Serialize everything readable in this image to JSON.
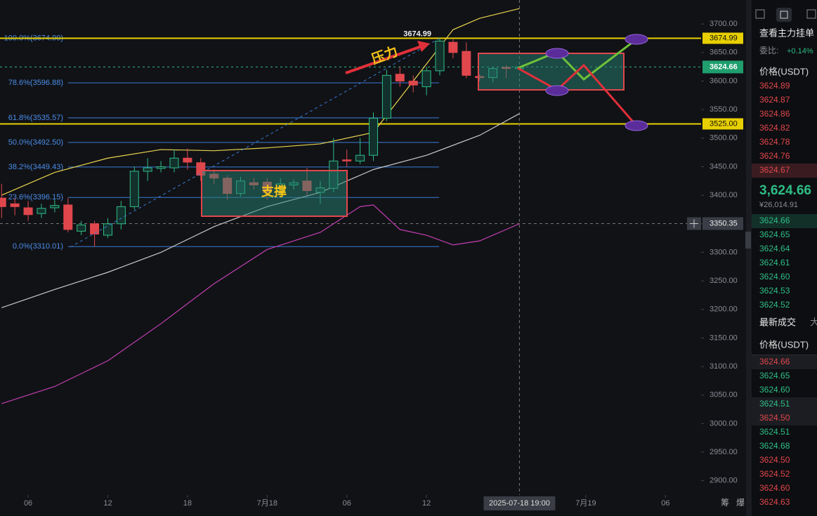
{
  "chart_data": {
    "type": "candlestick",
    "x": [
      4,
      5,
      6,
      7,
      8,
      9,
      10,
      11,
      12,
      13,
      14,
      15,
      16,
      17,
      18,
      19,
      20,
      21,
      22,
      23,
      24,
      25,
      26,
      27,
      28,
      29,
      30,
      31,
      32,
      33,
      34,
      35,
      36,
      37,
      38,
      39,
      40,
      41,
      42,
      43
    ],
    "open": [
      3395,
      3385,
      3378,
      3368,
      3378,
      3383,
      3337,
      3350,
      3330,
      3350,
      3380,
      3442,
      3447,
      3448,
      3465,
      3457,
      3437,
      3430,
      3403,
      3422,
      3423,
      3405,
      3418,
      3425,
      3405,
      3412,
      3462,
      3460,
      3470,
      3535,
      3612,
      3600,
      3590,
      3618,
      3668,
      3652,
      3608,
      3606,
      3624,
      3622
    ],
    "high": [
      3420,
      3395,
      3390,
      3385,
      3392,
      3395,
      3355,
      3355,
      3360,
      3390,
      3450,
      3465,
      3460,
      3480,
      3482,
      3465,
      3445,
      3435,
      3432,
      3430,
      3430,
      3430,
      3428,
      3448,
      3425,
      3500,
      3480,
      3500,
      3545,
      3620,
      3625,
      3610,
      3625,
      3674.99,
      3673,
      3668,
      3612,
      3625,
      3628,
      3626
    ],
    "low": [
      3360,
      3365,
      3355,
      3360,
      3370,
      3335,
      3330,
      3310.01,
      3325,
      3340,
      3375,
      3425,
      3440,
      3440,
      3445,
      3425,
      3420,
      3392,
      3398,
      3410,
      3392,
      3400,
      3410,
      3400,
      3385,
      3405,
      3450,
      3455,
      3460,
      3530,
      3590,
      3580,
      3575,
      3610,
      3640,
      3605,
      3600,
      3598,
      3605,
      3620
    ],
    "close": [
      3380,
      3380,
      3366,
      3377,
      3382,
      3340,
      3348,
      3332,
      3350,
      3380,
      3442,
      3448,
      3450,
      3465,
      3458,
      3435,
      3430,
      3403,
      3425,
      3418,
      3405,
      3420,
      3422,
      3408,
      3413,
      3460,
      3460,
      3470,
      3535,
      3610,
      3600,
      3593,
      3618,
      3670,
      3650,
      3610,
      3606,
      3622,
      3622,
      3624.66
    ],
    "up_color": "#2ebd85",
    "down_color": "#e0474c",
    "lines": [
      {
        "color": "#e8d44d",
        "x": [
          4,
          8,
          12,
          16,
          20,
          24,
          28,
          32,
          34,
          36,
          38,
          40,
          43
        ],
        "values": [
          3400,
          3440,
          3465,
          3480,
          3478,
          3483,
          3490,
          3510,
          3570,
          3630,
          3690,
          3710,
          3727
        ]
      },
      {
        "color": "#c8c8c8",
        "x": [
          4,
          8,
          12,
          16,
          20,
          24,
          28,
          32,
          36,
          40,
          43
        ],
        "values": [
          3203,
          3235,
          3265,
          3300,
          3345,
          3380,
          3405,
          3445,
          3470,
          3505,
          3543
        ]
      },
      {
        "color": "#c23fb0",
        "x": [
          4,
          8,
          12,
          16,
          20,
          24,
          28,
          30,
          31,
          32,
          34,
          36,
          38,
          40,
          43
        ],
        "values": [
          3035,
          3065,
          3110,
          3175,
          3245,
          3305,
          3335,
          3365,
          3380,
          3383,
          3340,
          3330,
          3313,
          3320,
          3350
        ]
      }
    ],
    "fib_levels": [
      {
        "value": 3674.99,
        "label": "100.0%(3674.99)"
      },
      {
        "value": 3596.88,
        "label": "78.6%(3596.88)"
      },
      {
        "value": 3535.57,
        "label": "61.8%(3535.57)"
      },
      {
        "value": 3492.5,
        "label": "50.0%(3492.50)"
      },
      {
        "value": 3449.43,
        "label": "38.2%(3449.43)"
      },
      {
        "value": 3396.15,
        "label": "23.6%(3396.15)"
      },
      {
        "value": 3310.01,
        "label": "0.0%(3310.01)"
      }
    ],
    "levels": [
      {
        "value": 3674.99,
        "label": "3674.99"
      },
      {
        "value": 3525,
        "label": "3525.00"
      }
    ],
    "current_price": 3624.66,
    "crosshair": {
      "x": {
        "value": 43,
        "label": "2025-07-18 19:00"
      },
      "y": 3350.35
    },
    "annotations": [
      "压力",
      "支撑"
    ],
    "xlim": [
      3.88,
      56.68
    ],
    "ylim": [
      2875,
      3742
    ],
    "xticks": [
      {
        "value": 6,
        "label": "06"
      },
      12,
      18,
      {
        "value": 24,
        "label": "7月18"
      },
      {
        "value": 30,
        "label": "06"
      },
      {
        "value": 36,
        "label": "12"
      },
      {
        "value": 48,
        "label": "7月19"
      },
      {
        "value": 54,
        "label": "06"
      }
    ],
    "yticks": [
      {
        "value": 2900,
        "label": "2900.00"
      },
      {
        "value": 2950,
        "label": "2950.00"
      },
      {
        "value": 3000,
        "label": "3000.00"
      },
      {
        "value": 3050,
        "label": "3050.00"
      },
      {
        "value": 3100,
        "label": "3100.00"
      },
      {
        "value": 3150,
        "label": "3150.00"
      },
      {
        "value": 3200,
        "label": "3200.00"
      },
      {
        "value": 3250,
        "label": "3250.00"
      },
      {
        "value": 3300,
        "label": "3300.00"
      },
      {
        "value": 3350,
        "label": "3350.00"
      },
      {
        "value": 3400,
        "label": "3400.00"
      },
      {
        "value": 3450,
        "label": "3450.00"
      },
      {
        "value": 3500,
        "label": "3500.00"
      },
      {
        "value": 3550,
        "label": "3550.00"
      },
      {
        "value": 3600,
        "label": "3600.00"
      },
      {
        "value": 3650,
        "label": "3650.00"
      },
      {
        "value": 3700,
        "label": "3700.00"
      }
    ],
    "footer_tabs": [
      "筹",
      "爆"
    ]
  },
  "order_book": {
    "title": "查看主力挂单",
    "ratio_label": "委比:",
    "ratio": "+0.14%",
    "price_header": "价格(USDT)",
    "asks": [
      "3624.89",
      "3624.87",
      "3624.86",
      "3624.82",
      "3624.78",
      "3624.76",
      "3624.67"
    ],
    "last_price": "3,624.66",
    "last_price_cny": "¥26,014.91",
    "bids": [
      "3624.66",
      "3624.65",
      "3624.64",
      "3624.61",
      "3624.60",
      "3624.53",
      "3624.52"
    ]
  },
  "trades": {
    "tabs": [
      "最新成交",
      "大"
    ],
    "price_header": "价格(USDT)",
    "rows": [
      {
        "price": "3624.66",
        "color": "#e0474c"
      },
      {
        "price": "3624.65",
        "color": "#2ebd85"
      },
      {
        "price": "3624.60",
        "color": "#2ebd85"
      },
      {
        "price": "3624.51",
        "color": "#2ebd85"
      },
      {
        "price": "3624.50",
        "color": "#e0474c"
      },
      {
        "price": "3624.51",
        "color": "#2ebd85"
      },
      {
        "price": "3624.68",
        "color": "#2ebd85"
      },
      {
        "price": "3624.50",
        "color": "#e0474c"
      },
      {
        "price": "3624.52",
        "color": "#e0474c"
      },
      {
        "price": "3624.60",
        "color": "#e0474c"
      },
      {
        "price": "3624.63",
        "color": "#e0474c"
      }
    ]
  }
}
